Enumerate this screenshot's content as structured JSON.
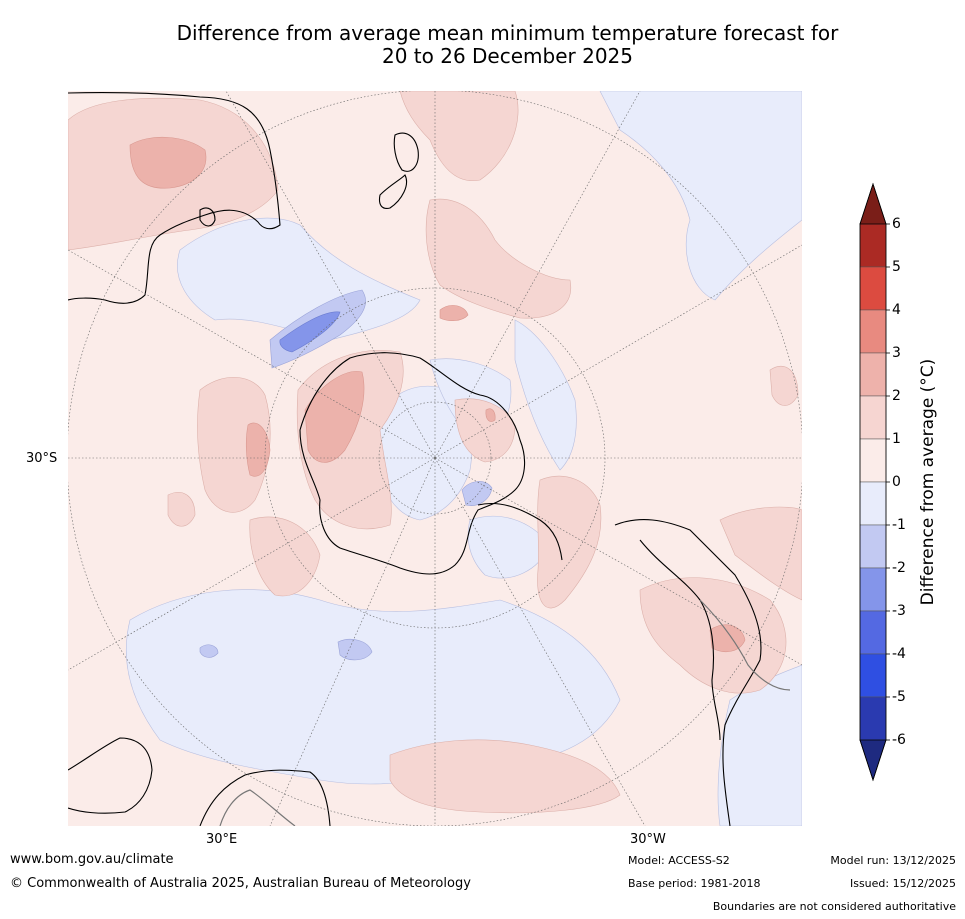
{
  "title_line1": "Difference from average mean minimum temperature forecast for",
  "title_line2": "20 to 26 December 2025",
  "map": {
    "lat_label": "30°S",
    "lon_labels": [
      "30°E",
      "30°W"
    ],
    "colors": {
      "ocean_base": "#fbece9",
      "pos_0_1": "#fbece9",
      "pos_1_2": "#f5d6d2",
      "pos_2_3": "#ecb2ab",
      "pos_3_4": "#e58c82",
      "cool_0_1": "#e8ecfb",
      "cool_1_2": "#c2c9f2",
      "cool_2_3": "#8495ea",
      "coast": "#000000",
      "border": "#777777",
      "grid": "#666666"
    }
  },
  "colorbar": {
    "label": "Difference from average (°C)",
    "ticks": [
      "6",
      "5",
      "4",
      "3",
      "2",
      "1",
      "0",
      "-1",
      "-2",
      "-3",
      "-4",
      "-5",
      "-6"
    ],
    "colors": [
      "#ab2a24",
      "#dc4b40",
      "#e88a80",
      "#eeb2ab",
      "#f6d5d1",
      "#fbece9",
      "#e8ecfb",
      "#c2c9f2",
      "#8495ea",
      "#5469e2",
      "#2f4fe2",
      "#2a3ab0"
    ],
    "top_extend_color": "#7a1e18",
    "bottom_extend_color": "#1e2a80"
  },
  "footer": {
    "url": "www.bom.gov.au/climate",
    "copyright": "© Commonwealth of Australia 2025, Australian Bureau of Meteorology",
    "model": "Model: ACCESS-S2",
    "base_period": "Base period: 1981-2018",
    "model_run": "Model run: 13/12/2025",
    "issued": "Issued: 15/12/2025",
    "disclaimer": "Boundaries are not considered authoritative"
  }
}
